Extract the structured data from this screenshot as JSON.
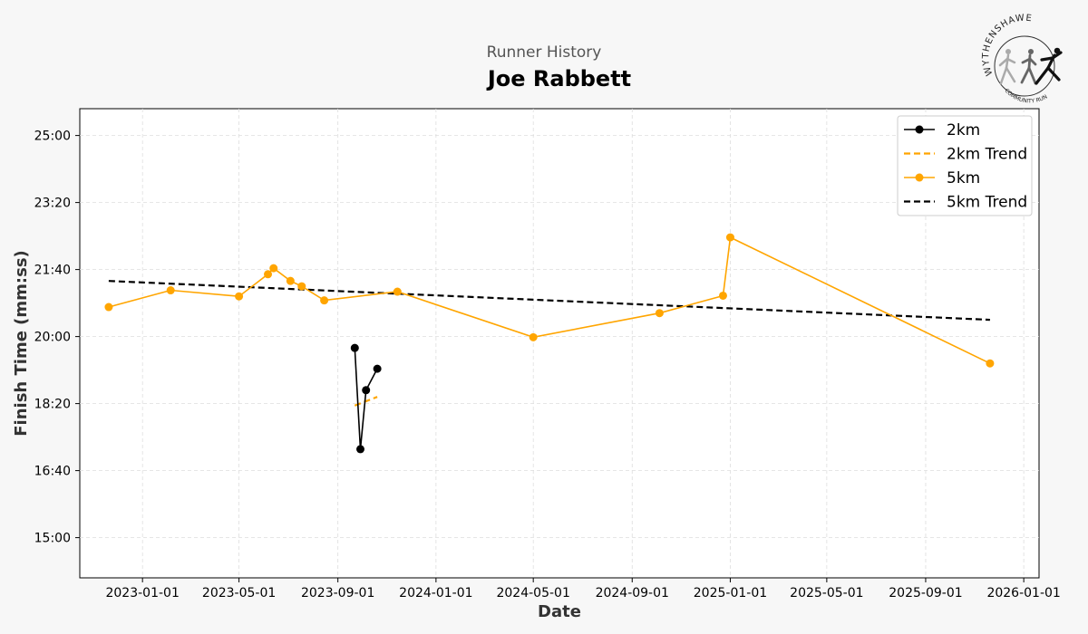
{
  "header": {
    "subtitle": "Runner History",
    "title": "Joe Rabbett"
  },
  "logo": {
    "top_text": "WYTHENSHAWE",
    "bottom_text": "COMMUNITY RUN",
    "icon": "runners-logo-icon"
  },
  "colors": {
    "background": "#f7f7f7",
    "plot_background": "#ffffff",
    "two_km": "#000000",
    "five_km": "#ffa500",
    "grid": "#dddddd"
  },
  "chart_data": {
    "type": "line",
    "xlabel": "Date",
    "ylabel": "Finish Time (mm:ss)",
    "x_axis": "date",
    "xlim": [
      "2022-10-15",
      "2026-01-20"
    ],
    "ylim_seconds": [
      840,
      1540
    ],
    "x_ticks": [
      "2023-01-01",
      "2023-05-01",
      "2023-09-01",
      "2024-01-01",
      "2024-05-01",
      "2024-09-01",
      "2025-01-01",
      "2025-05-01",
      "2025-09-01",
      "2026-01-01"
    ],
    "y_ticks_seconds": [
      900,
      1000,
      1100,
      1200,
      1300,
      1400,
      1500
    ],
    "y_tick_labels": [
      "15:00",
      "16:40",
      "18:20",
      "20:00",
      "21:40",
      "23:20",
      "25:00"
    ],
    "grid": true,
    "legend_position": "top-right",
    "series": [
      {
        "name": "2km",
        "color": "#000000",
        "style": "line-markers",
        "points": [
          {
            "x": "2023-09-22",
            "y": 1183
          },
          {
            "x": "2023-09-29",
            "y": 1032
          },
          {
            "x": "2023-10-06",
            "y": 1120
          },
          {
            "x": "2023-10-20",
            "y": 1152
          }
        ]
      },
      {
        "name": "2km Trend",
        "color": "#ffa500",
        "style": "dashed",
        "points": [
          {
            "x": "2023-09-22",
            "y": 1097
          },
          {
            "x": "2023-10-20",
            "y": 1110
          }
        ]
      },
      {
        "name": "5km",
        "color": "#ffa500",
        "style": "line-markers",
        "points": [
          {
            "x": "2022-11-20",
            "y": 1244
          },
          {
            "x": "2023-02-05",
            "y": 1269
          },
          {
            "x": "2023-05-01",
            "y": 1260
          },
          {
            "x": "2023-06-06",
            "y": 1293
          },
          {
            "x": "2023-06-13",
            "y": 1302
          },
          {
            "x": "2023-07-04",
            "y": 1283
          },
          {
            "x": "2023-07-18",
            "y": 1275
          },
          {
            "x": "2023-08-15",
            "y": 1254
          },
          {
            "x": "2023-11-14",
            "y": 1267
          },
          {
            "x": "2024-05-01",
            "y": 1199
          },
          {
            "x": "2024-10-05",
            "y": 1235
          },
          {
            "x": "2024-12-23",
            "y": 1261
          },
          {
            "x": "2025-01-01",
            "y": 1348
          },
          {
            "x": "2025-11-20",
            "y": 1160
          }
        ]
      },
      {
        "name": "5km Trend",
        "color": "#000000",
        "style": "dashed",
        "points": [
          {
            "x": "2022-11-20",
            "y": 1283
          },
          {
            "x": "2025-11-20",
            "y": 1225
          }
        ]
      }
    ]
  }
}
